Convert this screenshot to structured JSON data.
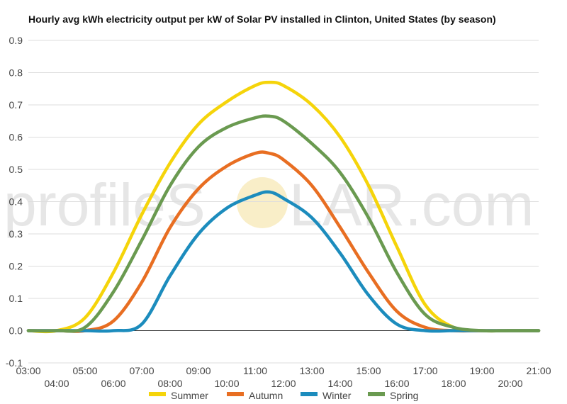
{
  "watermark": {
    "left": "profileS",
    "right": "LAR.com"
  },
  "chart_data": {
    "type": "line",
    "title": "Hourly avg kWh electricity output per kW of Solar PV installed in Clinton, United States (by season)",
    "xlabel": "",
    "ylabel": "",
    "ylim": [
      -0.1,
      0.9
    ],
    "y_ticks": [
      "0.9",
      "0.8",
      "0.7",
      "0.6",
      "0.5",
      "0.4",
      "0.3",
      "0.2",
      "0.1",
      "0.0",
      "-0.1"
    ],
    "x_ticks": [
      "03:00",
      "04:00",
      "05:00",
      "06:00",
      "07:00",
      "08:00",
      "09:00",
      "10:00",
      "11:00",
      "12:00",
      "13:00",
      "14:00",
      "15:00",
      "16:00",
      "17:00",
      "18:00",
      "19:00",
      "20:00",
      "21:00"
    ],
    "grid": true,
    "legend_position": "bottom",
    "x": [
      3,
      4,
      5,
      6,
      7,
      8,
      9,
      10,
      11,
      11.5,
      12,
      13,
      14,
      15,
      16,
      17,
      18,
      19,
      20,
      21
    ],
    "series": [
      {
        "name": "Summer",
        "color": "#f5d40a",
        "values": [
          0,
          0,
          0.04,
          0.18,
          0.36,
          0.52,
          0.64,
          0.71,
          0.76,
          0.77,
          0.76,
          0.7,
          0.6,
          0.45,
          0.26,
          0.08,
          0.01,
          0,
          0,
          0
        ]
      },
      {
        "name": "Autumn",
        "color": "#e86e22",
        "values": [
          0,
          0,
          0,
          0.03,
          0.15,
          0.32,
          0.44,
          0.51,
          0.55,
          0.55,
          0.53,
          0.45,
          0.32,
          0.18,
          0.06,
          0.01,
          0,
          0,
          0,
          0
        ]
      },
      {
        "name": "Winter",
        "color": "#1c8cbd",
        "values": [
          0,
          0,
          0,
          0,
          0.02,
          0.17,
          0.3,
          0.38,
          0.42,
          0.43,
          0.41,
          0.35,
          0.24,
          0.11,
          0.02,
          0,
          0,
          0,
          0,
          0
        ]
      },
      {
        "name": "Spring",
        "color": "#6a9a50",
        "values": [
          0,
          0,
          0.01,
          0.12,
          0.28,
          0.45,
          0.57,
          0.63,
          0.66,
          0.665,
          0.65,
          0.58,
          0.49,
          0.35,
          0.18,
          0.05,
          0.01,
          0,
          0,
          0
        ]
      }
    ]
  }
}
